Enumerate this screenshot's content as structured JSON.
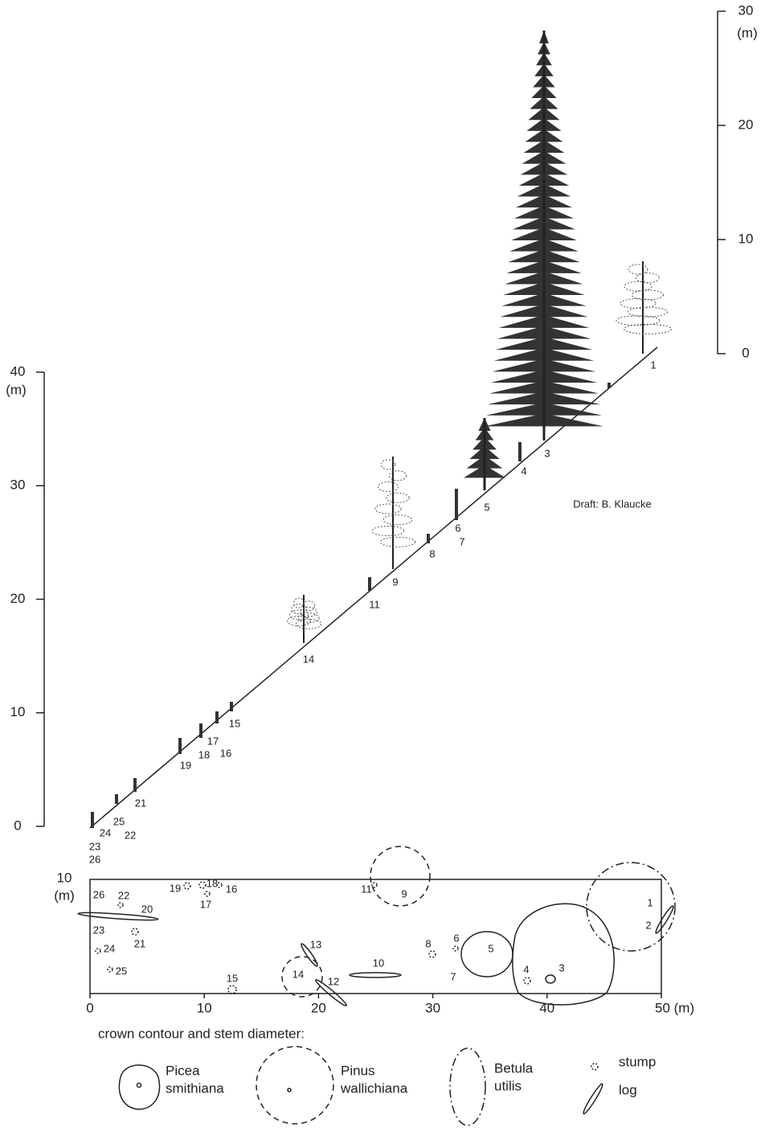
{
  "profile": {
    "height_scale": {
      "ticks": [
        0,
        10,
        20,
        30
      ],
      "unit": "(m)"
    },
    "slope_scale": {
      "ticks": [
        0,
        10,
        20,
        30,
        40
      ],
      "unit": "(m)"
    },
    "tree_labels": [
      "1",
      "3",
      "4",
      "5",
      "6",
      "7",
      "8",
      "9",
      "11",
      "14",
      "15",
      "16",
      "17",
      "18",
      "19",
      "21",
      "22",
      "23",
      "24",
      "25",
      "26"
    ],
    "credit": "Draft: B. Klaucke"
  },
  "plan": {
    "y_axis": {
      "ticks": [
        10
      ],
      "unit": "(m)"
    },
    "x_axis": {
      "ticks": [
        0,
        10,
        20,
        30,
        40,
        {
          "value": 50,
          "label": "50 (m)"
        }
      ]
    },
    "tree_labels": [
      "1",
      "2",
      "3",
      "4",
      "5",
      "6",
      "7",
      "8",
      "9",
      "10",
      "11",
      "12",
      "13",
      "14",
      "15",
      "16",
      "17",
      "18",
      "19",
      "20",
      "21",
      "22",
      "23",
      "24",
      "25",
      "26"
    ]
  },
  "legend": {
    "title": "crown contour and stem diameter:",
    "items": [
      {
        "label": [
          "Picea",
          "smithiana"
        ]
      },
      {
        "label": [
          "Pinus",
          "wallichiana"
        ]
      },
      {
        "label": [
          "Betula",
          "utilis"
        ]
      },
      {
        "label": [
          "stump"
        ]
      },
      {
        "label": [
          "log"
        ]
      }
    ]
  }
}
